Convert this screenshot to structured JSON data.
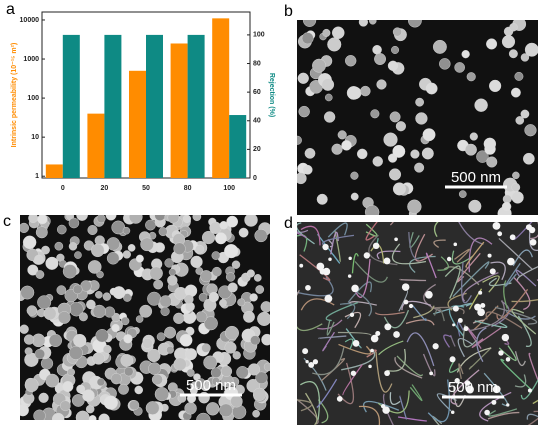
{
  "chart_data": {
    "type": "bar",
    "panel_label": "a",
    "categories": [
      "0",
      "20",
      "50",
      "80",
      "100"
    ],
    "ylabel": "Intrinsic permeability (10⁻¹⁵ m²)",
    "y2label": "Rejection (%)",
    "log_y": true,
    "ylim": [
      0.9,
      16000
    ],
    "yticks": [
      1,
      10,
      100,
      1000,
      10000
    ],
    "y2lim": [
      0,
      116
    ],
    "y2ticks": [
      0,
      20,
      40,
      60,
      80,
      100
    ],
    "series": [
      {
        "color": "#ff8c00",
        "values": [
          2,
          40,
          500,
          2500,
          11000
        ]
      },
      {
        "color": "#0e8a84",
        "axis": "y2",
        "values": [
          100,
          100,
          100,
          100,
          44
        ]
      }
    ]
  },
  "images": [
    {
      "label": "b",
      "scale_bar": "500 nm"
    },
    {
      "label": "c",
      "scale_bar": "500 nm"
    },
    {
      "label": "d",
      "scale_bar": "500 nm"
    }
  ]
}
